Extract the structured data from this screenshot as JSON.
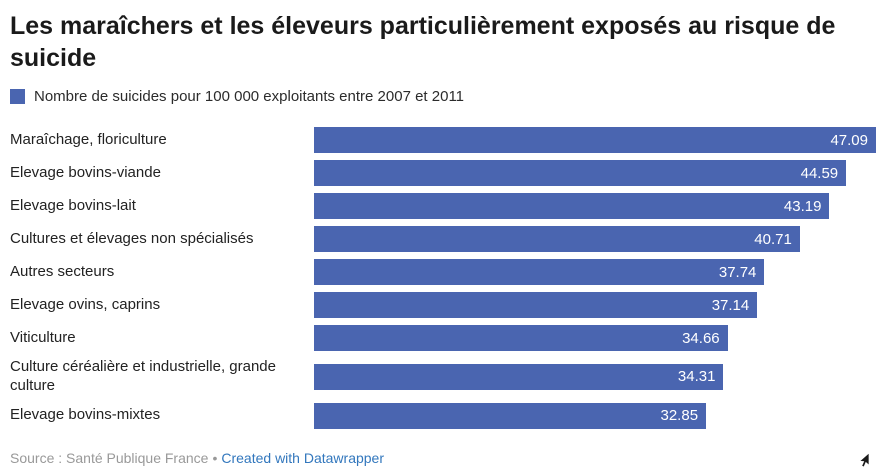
{
  "title": "Les maraîchers et les éleveurs particulièrement exposés au risque de suicide",
  "legend": {
    "label": "Nombre de suicides pour 100 000 exploitants entre 2007 et 2011",
    "color": "#4a65b0"
  },
  "chart_data": {
    "type": "bar",
    "orientation": "horizontal",
    "title": "Les maraîchers et les éleveurs particulièrement exposés au risque de suicide",
    "legend_entries": [
      "Nombre de suicides pour 100 000 exploitants entre 2007 et 2011"
    ],
    "categories": [
      "Maraîchage, floriculture",
      "Elevage bovins-viande",
      "Elevage bovins-lait",
      "Cultures et élevages non spécialisés",
      "Autres secteurs",
      "Elevage ovins, caprins",
      "Viticulture",
      "Culture céréalière et industrielle, grande culture",
      "Elevage bovins-mixtes"
    ],
    "values": [
      47.09,
      44.59,
      43.19,
      40.71,
      37.74,
      37.14,
      34.66,
      34.31,
      32.85
    ],
    "value_labels": [
      "47.09",
      "44.59",
      "43.19",
      "40.71",
      "37.74",
      "37.14",
      "34.66",
      "34.31",
      "32.85"
    ],
    "xlim": [
      0,
      47.09
    ],
    "bar_color": "#4a65b0",
    "value_label_color": "#ffffff",
    "grid": false,
    "legend_position": "top"
  },
  "footer": {
    "source": "Source : Santé Publique France",
    "separator": "•",
    "link_text": "Created with Datawrapper"
  }
}
